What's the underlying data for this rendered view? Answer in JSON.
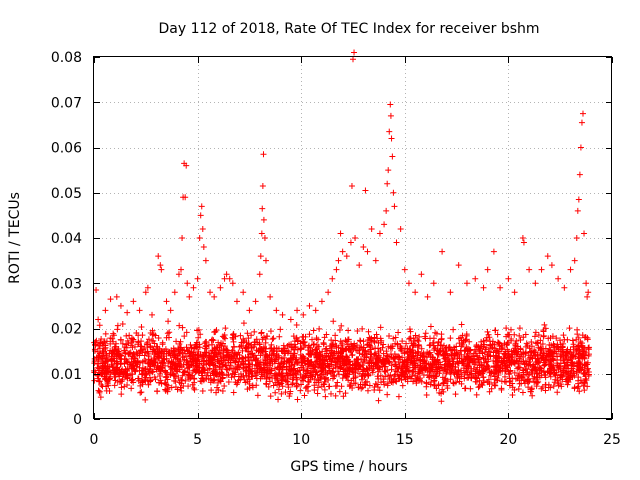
{
  "chart_data": {
    "type": "scatter",
    "title": "Day 112 of 2018, Rate Of TEC Index for receiver bshm",
    "xlabel": "GPS time / hours",
    "ylabel": "ROTI / TECUs",
    "xlim": [
      0,
      25
    ],
    "ylim": [
      0,
      0.08
    ],
    "xticks": [
      0,
      5,
      10,
      15,
      20,
      25
    ],
    "xtick_labels": [
      "0",
      "5",
      "10",
      "15",
      "20",
      "25"
    ],
    "yticks": [
      0,
      0.01,
      0.02,
      0.03,
      0.04,
      0.05,
      0.06,
      0.07,
      0.08
    ],
    "ytick_labels": [
      "0",
      "0.01",
      "0.02",
      "0.03",
      "0.04",
      "0.05",
      "0.06",
      "0.07",
      "0.08"
    ],
    "grid": true,
    "marker": "+",
    "color": "#ff0000",
    "series": [
      {
        "name": "ROTI",
        "points": [
          [
            0.1,
            0.0285
          ],
          [
            0.2,
            0.022
          ],
          [
            0.55,
            0.024
          ],
          [
            0.8,
            0.0265
          ],
          [
            1.1,
            0.027
          ],
          [
            1.3,
            0.025
          ],
          [
            1.6,
            0.0235
          ],
          [
            1.9,
            0.026
          ],
          [
            2.2,
            0.024
          ],
          [
            2.5,
            0.028
          ],
          [
            2.6,
            0.029
          ],
          [
            2.8,
            0.023
          ],
          [
            3.1,
            0.036
          ],
          [
            3.2,
            0.034
          ],
          [
            3.25,
            0.033
          ],
          [
            3.5,
            0.026
          ],
          [
            3.7,
            0.024
          ],
          [
            3.9,
            0.028
          ],
          [
            4.1,
            0.032
          ],
          [
            4.2,
            0.033
          ],
          [
            4.25,
            0.04
          ],
          [
            4.3,
            0.049
          ],
          [
            4.35,
            0.0565
          ],
          [
            4.4,
            0.049
          ],
          [
            4.45,
            0.056
          ],
          [
            4.5,
            0.03
          ],
          [
            4.6,
            0.027
          ],
          [
            4.8,
            0.029
          ],
          [
            5.0,
            0.031
          ],
          [
            5.1,
            0.04
          ],
          [
            5.15,
            0.045
          ],
          [
            5.2,
            0.047
          ],
          [
            5.25,
            0.042
          ],
          [
            5.3,
            0.038
          ],
          [
            5.4,
            0.035
          ],
          [
            5.6,
            0.028
          ],
          [
            5.8,
            0.027
          ],
          [
            6.1,
            0.029
          ],
          [
            6.3,
            0.031
          ],
          [
            6.4,
            0.032
          ],
          [
            6.55,
            0.031
          ],
          [
            6.7,
            0.03
          ],
          [
            6.9,
            0.026
          ],
          [
            7.2,
            0.028
          ],
          [
            7.5,
            0.024
          ],
          [
            7.8,
            0.026
          ],
          [
            8.0,
            0.032
          ],
          [
            8.05,
            0.036
          ],
          [
            8.1,
            0.041
          ],
          [
            8.12,
            0.0465
          ],
          [
            8.15,
            0.0515
          ],
          [
            8.18,
            0.0585
          ],
          [
            8.2,
            0.044
          ],
          [
            8.25,
            0.04
          ],
          [
            8.3,
            0.035
          ],
          [
            8.5,
            0.027
          ],
          [
            8.8,
            0.024
          ],
          [
            9.1,
            0.023
          ],
          [
            9.5,
            0.022
          ],
          [
            9.8,
            0.024
          ],
          [
            10.1,
            0.023
          ],
          [
            10.4,
            0.025
          ],
          [
            10.7,
            0.024
          ],
          [
            11.0,
            0.026
          ],
          [
            11.3,
            0.028
          ],
          [
            11.5,
            0.031
          ],
          [
            11.7,
            0.033
          ],
          [
            11.8,
            0.035
          ],
          [
            11.9,
            0.041
          ],
          [
            12.0,
            0.037
          ],
          [
            12.2,
            0.036
          ],
          [
            12.4,
            0.039
          ],
          [
            12.45,
            0.0515
          ],
          [
            12.5,
            0.0795
          ],
          [
            12.55,
            0.081
          ],
          [
            12.6,
            0.04
          ],
          [
            12.8,
            0.034
          ],
          [
            13.0,
            0.038
          ],
          [
            13.1,
            0.0505
          ],
          [
            13.2,
            0.037
          ],
          [
            13.4,
            0.042
          ],
          [
            13.6,
            0.035
          ],
          [
            13.8,
            0.041
          ],
          [
            14.0,
            0.043
          ],
          [
            14.1,
            0.046
          ],
          [
            14.15,
            0.052
          ],
          [
            14.2,
            0.055
          ],
          [
            14.25,
            0.0635
          ],
          [
            14.3,
            0.0695
          ],
          [
            14.33,
            0.067
          ],
          [
            14.36,
            0.062
          ],
          [
            14.4,
            0.058
          ],
          [
            14.45,
            0.05
          ],
          [
            14.5,
            0.047
          ],
          [
            14.6,
            0.039
          ],
          [
            14.8,
            0.042
          ],
          [
            15.0,
            0.033
          ],
          [
            15.2,
            0.03
          ],
          [
            15.5,
            0.028
          ],
          [
            15.8,
            0.032
          ],
          [
            16.1,
            0.027
          ],
          [
            16.4,
            0.03
          ],
          [
            16.8,
            0.037
          ],
          [
            17.2,
            0.028
          ],
          [
            17.6,
            0.034
          ],
          [
            18.0,
            0.03
          ],
          [
            18.4,
            0.031
          ],
          [
            18.8,
            0.029
          ],
          [
            19.0,
            0.033
          ],
          [
            19.3,
            0.037
          ],
          [
            19.6,
            0.029
          ],
          [
            20.0,
            0.031
          ],
          [
            20.3,
            0.028
          ],
          [
            20.7,
            0.04
          ],
          [
            20.75,
            0.039
          ],
          [
            21.0,
            0.033
          ],
          [
            21.3,
            0.03
          ],
          [
            21.6,
            0.033
          ],
          [
            21.9,
            0.036
          ],
          [
            22.1,
            0.034
          ],
          [
            22.4,
            0.031
          ],
          [
            22.7,
            0.029
          ],
          [
            23.0,
            0.033
          ],
          [
            23.2,
            0.035
          ],
          [
            23.3,
            0.04
          ],
          [
            23.35,
            0.046
          ],
          [
            23.4,
            0.0485
          ],
          [
            23.45,
            0.054
          ],
          [
            23.5,
            0.06
          ],
          [
            23.55,
            0.0655
          ],
          [
            23.6,
            0.0675
          ],
          [
            23.65,
            0.041
          ],
          [
            23.75,
            0.03
          ],
          [
            23.8,
            0.027
          ],
          [
            23.85,
            0.028
          ]
        ],
        "dense_band": {
          "x_range": [
            0.0,
            23.9
          ],
          "y_min_approx": 0.002,
          "y_max_approx": 0.025,
          "y_typical": 0.011
        }
      }
    ]
  }
}
